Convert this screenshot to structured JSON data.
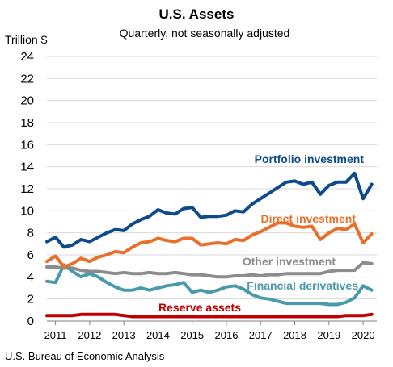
{
  "chart_data": {
    "type": "line",
    "title": "U.S. Assets",
    "subtitle": "Quarterly, not seasonally adjusted",
    "ylabel": "Trillion $",
    "ylim": [
      0,
      24
    ],
    "yticks": [
      "0",
      "2",
      "4",
      "6",
      "8",
      "10",
      "12",
      "14",
      "16",
      "18",
      "20",
      "22",
      "24"
    ],
    "xlim": [
      2010.75,
      2020.4
    ],
    "xticks": [
      "2011",
      "2012",
      "2013",
      "2014",
      "2015",
      "2016",
      "2017",
      "2018",
      "2019",
      "2020"
    ],
    "grid": true,
    "source": "U.S. Bureau of Economic Analysis",
    "x": [
      2010.75,
      2011.0,
      2011.25,
      2011.5,
      2011.75,
      2012.0,
      2012.25,
      2012.5,
      2012.75,
      2013.0,
      2013.25,
      2013.5,
      2013.75,
      2014.0,
      2014.25,
      2014.5,
      2014.75,
      2015.0,
      2015.25,
      2015.5,
      2015.75,
      2016.0,
      2016.25,
      2016.5,
      2016.75,
      2017.0,
      2017.25,
      2017.5,
      2017.75,
      2018.0,
      2018.25,
      2018.5,
      2018.75,
      2019.0,
      2019.25,
      2019.5,
      2019.75,
      2020.0,
      2020.25
    ],
    "series": [
      {
        "name": "Portfolio investment",
        "color": "#0e4a8c",
        "values": [
          7.2,
          7.6,
          6.7,
          6.9,
          7.4,
          7.2,
          7.6,
          8.0,
          8.3,
          8.2,
          8.8,
          9.2,
          9.5,
          10.1,
          9.8,
          9.7,
          10.2,
          10.3,
          9.4,
          9.5,
          9.5,
          9.6,
          10.0,
          9.9,
          10.6,
          11.1,
          11.6,
          12.1,
          12.6,
          12.7,
          12.4,
          12.6,
          11.5,
          12.3,
          12.6,
          12.6,
          13.4,
          11.1,
          12.4
        ]
      },
      {
        "name": "Direct investment",
        "color": "#e8702a",
        "values": [
          5.4,
          5.9,
          4.9,
          5.2,
          5.7,
          5.4,
          5.8,
          6.0,
          6.3,
          6.2,
          6.7,
          7.1,
          7.2,
          7.5,
          7.3,
          7.2,
          7.5,
          7.5,
          6.9,
          7.0,
          7.1,
          7.0,
          7.4,
          7.3,
          7.8,
          8.1,
          8.5,
          8.9,
          8.9,
          8.6,
          8.5,
          8.6,
          7.4,
          8.0,
          8.4,
          8.3,
          8.8,
          7.1,
          7.9
        ]
      },
      {
        "name": "Other investment",
        "color": "#8c8c8c",
        "values": [
          4.9,
          4.9,
          4.8,
          4.8,
          4.6,
          4.5,
          4.5,
          4.4,
          4.3,
          4.4,
          4.3,
          4.3,
          4.4,
          4.3,
          4.3,
          4.4,
          4.3,
          4.2,
          4.2,
          4.1,
          4.0,
          4.0,
          4.1,
          4.1,
          4.2,
          4.1,
          4.2,
          4.2,
          4.3,
          4.3,
          4.3,
          4.3,
          4.3,
          4.5,
          4.6,
          4.6,
          4.6,
          5.3,
          5.2
        ]
      },
      {
        "name": "Financial derivatives",
        "color": "#4a9aab",
        "values": [
          3.6,
          3.5,
          5.1,
          4.5,
          4.0,
          4.3,
          4.0,
          3.5,
          3.1,
          2.8,
          2.8,
          3.0,
          2.8,
          3.0,
          3.2,
          3.3,
          3.5,
          2.6,
          2.8,
          2.6,
          2.8,
          3.1,
          3.2,
          2.9,
          2.4,
          2.1,
          2.0,
          1.8,
          1.6,
          1.6,
          1.6,
          1.6,
          1.6,
          1.5,
          1.5,
          1.7,
          2.1,
          3.2,
          2.8
        ]
      },
      {
        "name": "Reserve assets",
        "color": "#c00000",
        "values": [
          0.5,
          0.5,
          0.5,
          0.5,
          0.6,
          0.6,
          0.6,
          0.6,
          0.6,
          0.5,
          0.4,
          0.4,
          0.4,
          0.4,
          0.4,
          0.4,
          0.4,
          0.4,
          0.4,
          0.4,
          0.4,
          0.4,
          0.4,
          0.4,
          0.4,
          0.4,
          0.4,
          0.4,
          0.4,
          0.4,
          0.4,
          0.4,
          0.4,
          0.4,
          0.4,
          0.5,
          0.5,
          0.5,
          0.6
        ]
      }
    ]
  }
}
